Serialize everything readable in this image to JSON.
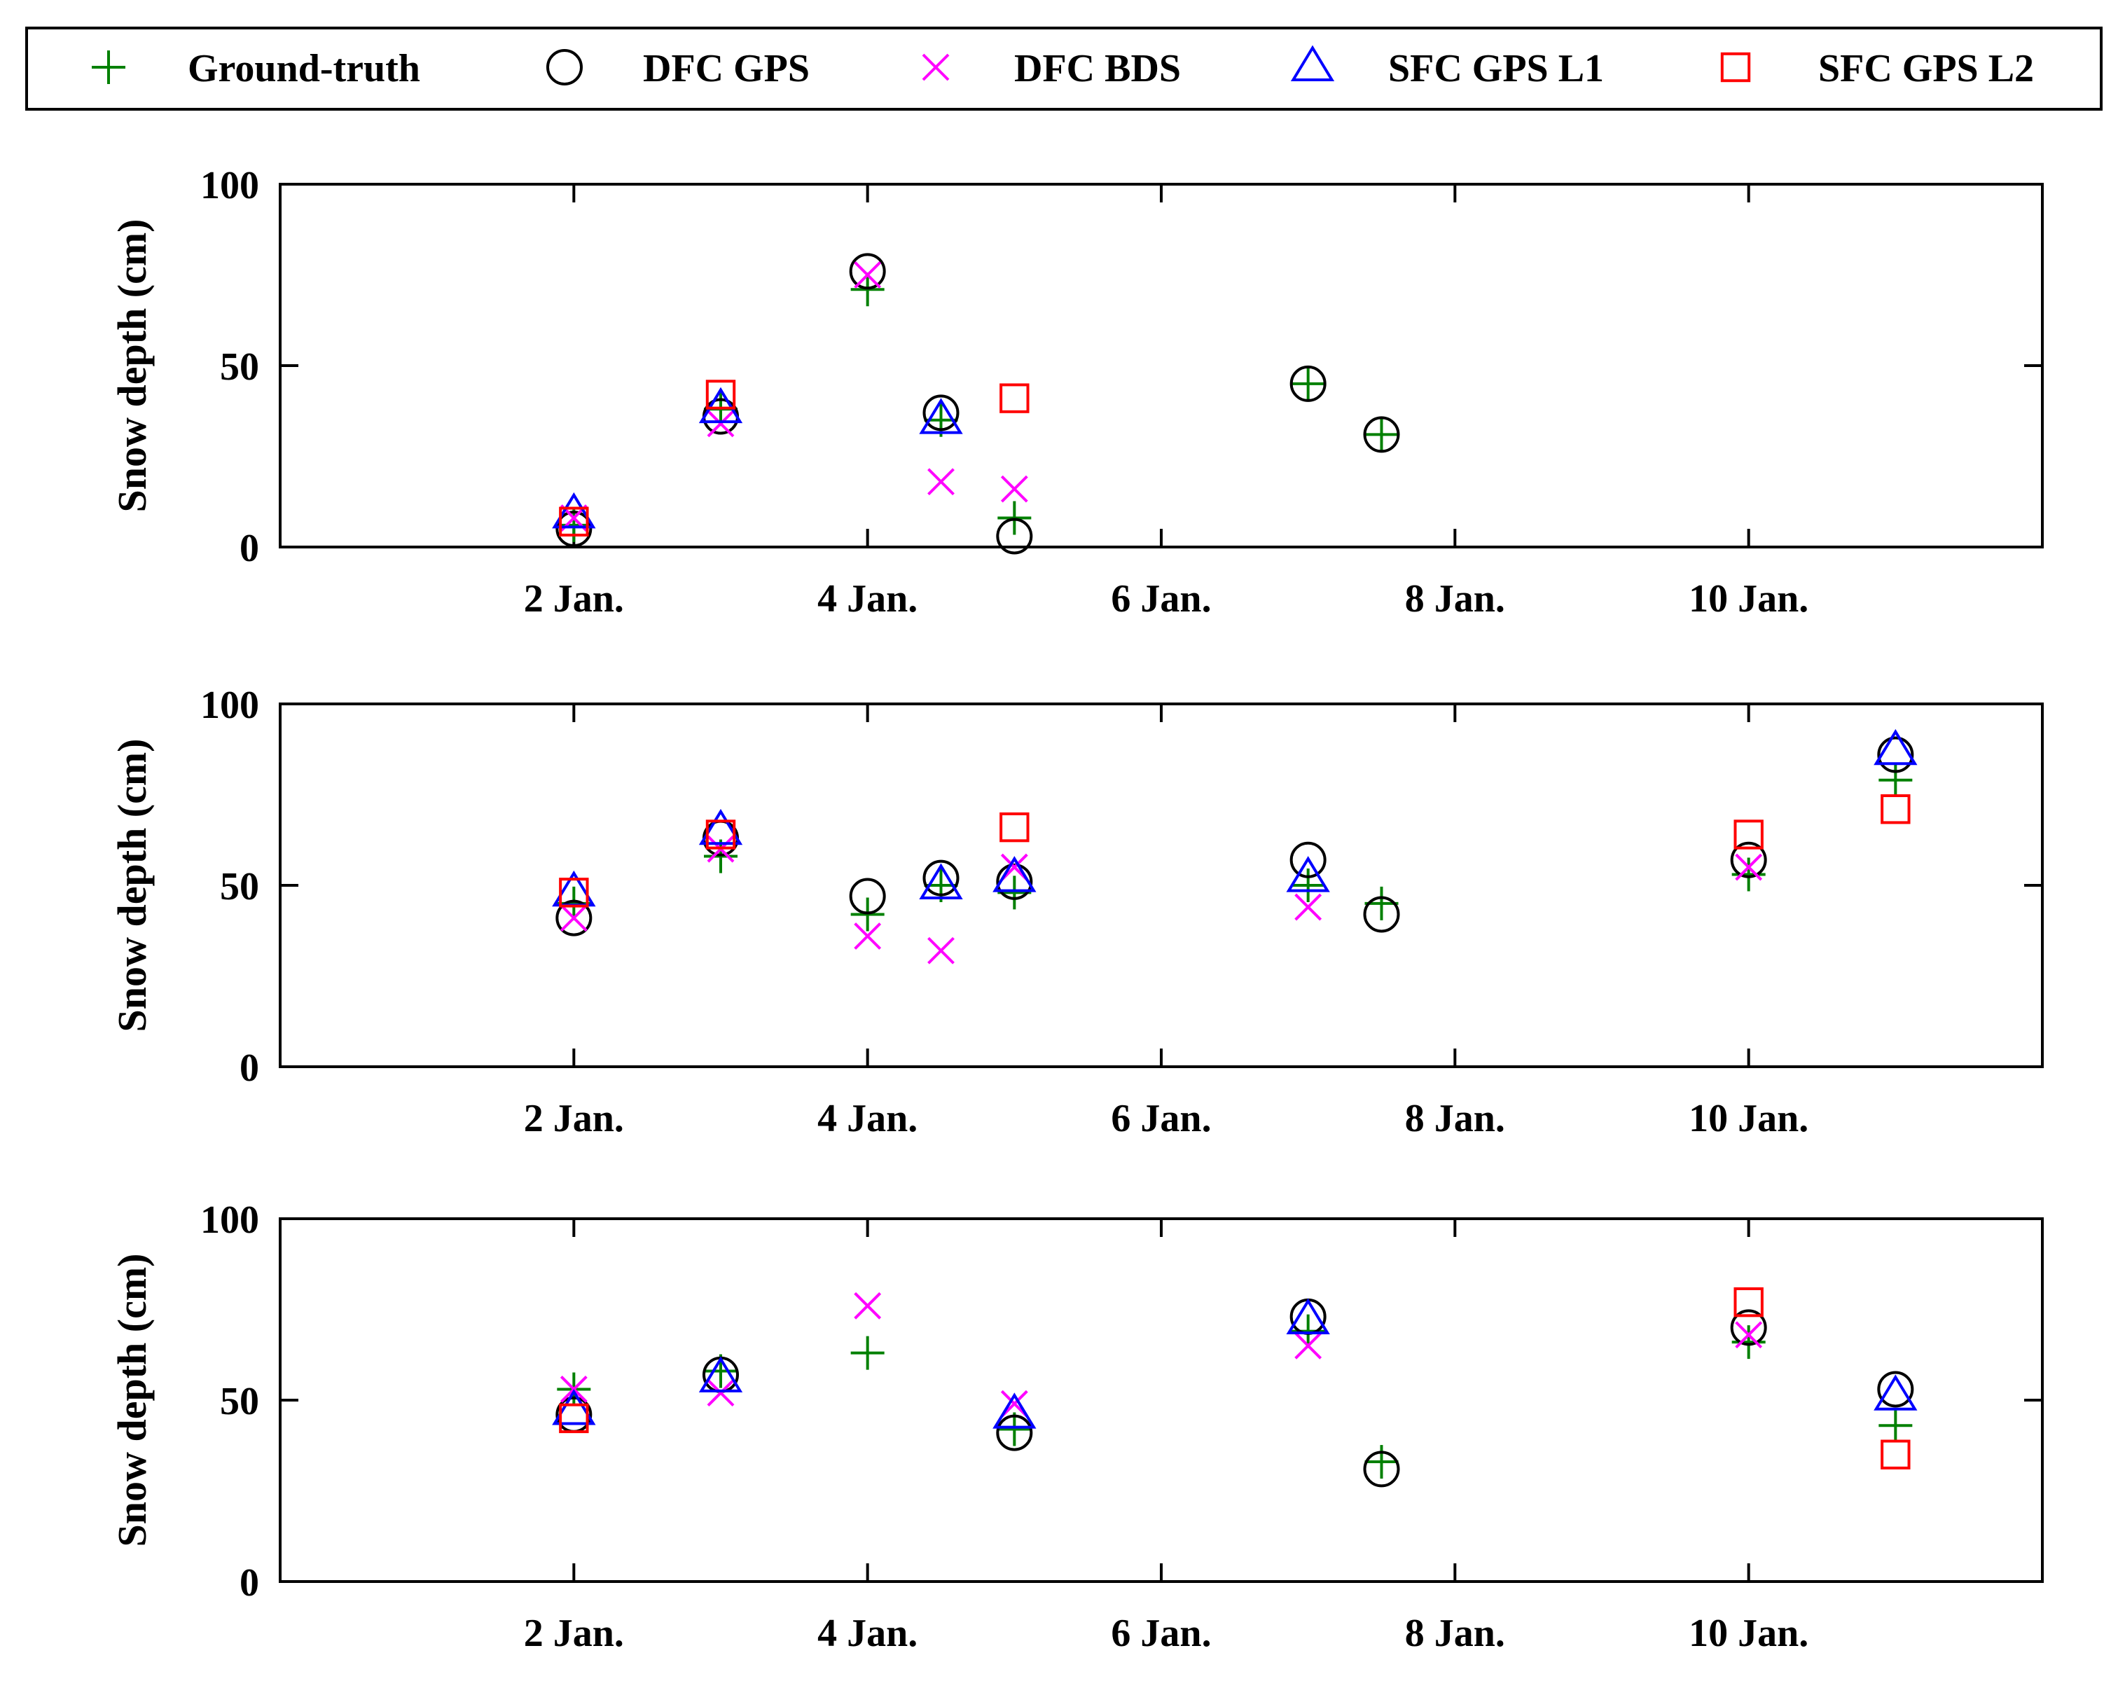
{
  "legend": {
    "entries": [
      {
        "label": "Ground-truth",
        "marker": "plus",
        "color": "#008000"
      },
      {
        "label": "DFC GPS",
        "marker": "circle",
        "color": "#000000"
      },
      {
        "label": "DFC BDS",
        "marker": "cross",
        "color": "#ff00ff"
      },
      {
        "label": "SFC GPS L1",
        "marker": "triangle",
        "color": "#0000ff"
      },
      {
        "label": "SFC GPS L2",
        "marker": "square",
        "color": "#ff0000"
      }
    ]
  },
  "chart_data": [
    {
      "type": "scatter",
      "title": "",
      "xlabel": "",
      "ylabel": "Snow depth (cm)",
      "xlim": [
        0,
        12
      ],
      "ylim": [
        0,
        100
      ],
      "xticks": [
        2,
        4,
        6,
        8,
        10
      ],
      "xtick_labels": [
        "2 Jan.",
        "4 Jan.",
        "6 Jan.",
        "8 Jan.",
        "10 Jan."
      ],
      "yticks": [
        0,
        50,
        100
      ],
      "ytick_labels": [
        "0",
        "50",
        "100"
      ],
      "series": [
        {
          "name": "Ground-truth",
          "points": [
            [
              2,
              6
            ],
            [
              3,
              38
            ],
            [
              4,
              71
            ],
            [
              4.5,
              35
            ],
            [
              5,
              8
            ],
            [
              7,
              45
            ],
            [
              7.5,
              31
            ]
          ]
        },
        {
          "name": "DFC GPS",
          "points": [
            [
              2,
              5
            ],
            [
              3,
              36
            ],
            [
              4,
              76
            ],
            [
              4.5,
              37
            ],
            [
              5,
              3
            ],
            [
              7,
              45
            ],
            [
              7.5,
              31
            ]
          ]
        },
        {
          "name": "DFC BDS",
          "points": [
            [
              2,
              8
            ],
            [
              3,
              34
            ],
            [
              4,
              75
            ],
            [
              4.5,
              18
            ],
            [
              5,
              16
            ]
          ]
        },
        {
          "name": "SFC GPS L1",
          "points": [
            [
              2,
              9
            ],
            [
              3,
              38
            ],
            [
              4.5,
              35
            ]
          ]
        },
        {
          "name": "SFC GPS L2",
          "points": [
            [
              2,
              7
            ],
            [
              3,
              42
            ],
            [
              5,
              41
            ]
          ]
        }
      ]
    },
    {
      "type": "scatter",
      "title": "",
      "xlabel": "",
      "ylabel": "Snow depth (cm)",
      "xlim": [
        0,
        12
      ],
      "ylim": [
        0,
        100
      ],
      "xticks": [
        2,
        4,
        6,
        8,
        10
      ],
      "xtick_labels": [
        "2 Jan.",
        "4 Jan.",
        "6 Jan.",
        "8 Jan.",
        "10 Jan."
      ],
      "yticks": [
        0,
        50,
        100
      ],
      "ytick_labels": [
        "0",
        "50",
        "100"
      ],
      "series": [
        {
          "name": "Ground-truth",
          "points": [
            [
              2,
              45
            ],
            [
              3,
              58
            ],
            [
              4,
              42
            ],
            [
              4.5,
              50
            ],
            [
              5,
              48
            ],
            [
              7,
              50
            ],
            [
              7.5,
              45
            ],
            [
              10,
              53
            ],
            [
              11,
              79
            ]
          ]
        },
        {
          "name": "DFC GPS",
          "points": [
            [
              2,
              41
            ],
            [
              3,
              63
            ],
            [
              4,
              47
            ],
            [
              4.5,
              52
            ],
            [
              5,
              51
            ],
            [
              7,
              57
            ],
            [
              7.5,
              42
            ],
            [
              10,
              57
            ],
            [
              11,
              86
            ]
          ]
        },
        {
          "name": "DFC BDS",
          "points": [
            [
              2,
              41
            ],
            [
              3,
              60
            ],
            [
              4,
              36
            ],
            [
              4.5,
              32
            ],
            [
              5,
              55
            ],
            [
              7,
              44
            ],
            [
              10,
              55
            ]
          ]
        },
        {
          "name": "SFC GPS L1",
          "points": [
            [
              2,
              48
            ],
            [
              3,
              65
            ],
            [
              4.5,
              50
            ],
            [
              5,
              52
            ],
            [
              7,
              52
            ],
            [
              11,
              87
            ]
          ]
        },
        {
          "name": "SFC GPS L2",
          "points": [
            [
              2,
              48
            ],
            [
              3,
              64
            ],
            [
              5,
              66
            ],
            [
              10,
              64
            ],
            [
              11,
              71
            ]
          ]
        }
      ]
    },
    {
      "type": "scatter",
      "title": "",
      "xlabel": "",
      "ylabel": "Snow depth (cm)",
      "xlim": [
        0,
        12
      ],
      "ylim": [
        0,
        100
      ],
      "xticks": [
        2,
        4,
        6,
        8,
        10
      ],
      "xtick_labels": [
        "2 Jan.",
        "4 Jan.",
        "6 Jan.",
        "8 Jan.",
        "10 Jan."
      ],
      "yticks": [
        0,
        50,
        100
      ],
      "ytick_labels": [
        "0",
        "50",
        "100"
      ],
      "series": [
        {
          "name": "Ground-truth",
          "points": [
            [
              2,
              53
            ],
            [
              3,
              58
            ],
            [
              4,
              63
            ],
            [
              5,
              42
            ],
            [
              7,
              69
            ],
            [
              7.5,
              33
            ],
            [
              10,
              66
            ],
            [
              11,
              43
            ]
          ]
        },
        {
          "name": "DFC GPS",
          "points": [
            [
              2,
              46
            ],
            [
              3,
              57
            ],
            [
              5,
              41
            ],
            [
              7,
              73
            ],
            [
              7.5,
              31
            ],
            [
              10,
              70
            ],
            [
              11,
              53
            ]
          ]
        },
        {
          "name": "DFC BDS",
          "points": [
            [
              2,
              53
            ],
            [
              3,
              52
            ],
            [
              4,
              76
            ],
            [
              5,
              49
            ],
            [
              7,
              65
            ],
            [
              10,
              68
            ]
          ]
        },
        {
          "name": "SFC GPS L1",
          "points": [
            [
              2,
              47
            ],
            [
              3,
              56
            ],
            [
              5,
              46
            ],
            [
              7,
              72
            ],
            [
              11,
              51
            ]
          ]
        },
        {
          "name": "SFC GPS L2",
          "points": [
            [
              2,
              45
            ],
            [
              10,
              77
            ],
            [
              11,
              35
            ]
          ]
        }
      ]
    }
  ]
}
